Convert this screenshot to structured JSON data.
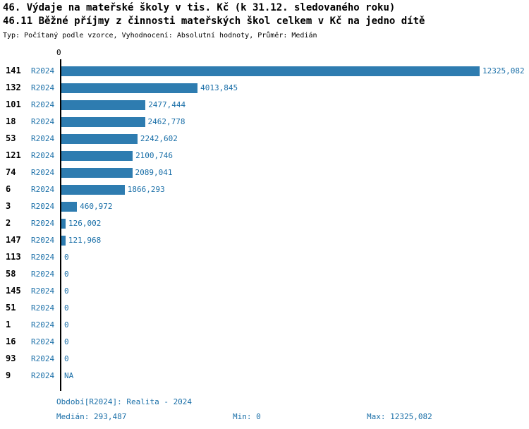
{
  "titles": {
    "line1": "46. Výdaje na mateřské školy v tis. Kč (k 31.12. sledovaného roku)",
    "line2": "46.11 Běžné příjmy z činnosti mateřských škol celkem v Kč na jedno dítě",
    "subtitle": "Typ: Počítaný podle vzorce, Vyhodnocení: Absolutní hodnoty, Průměr: Medián"
  },
  "colors": {
    "bar": "#2E7CB0",
    "text_blue": "#1A6FA8"
  },
  "chart_data": {
    "type": "bar",
    "orientation": "horizontal",
    "axis_zero_label": "0",
    "xlim": [
      0,
      12325.082
    ],
    "grid": false,
    "legend": "none",
    "rows": [
      {
        "id": "141",
        "period": "R2024",
        "value": 12325.082,
        "label": "12325,082"
      },
      {
        "id": "132",
        "period": "R2024",
        "value": 4013.845,
        "label": "4013,845"
      },
      {
        "id": "101",
        "period": "R2024",
        "value": 2477.444,
        "label": "2477,444"
      },
      {
        "id": "18",
        "period": "R2024",
        "value": 2462.778,
        "label": "2462,778"
      },
      {
        "id": "53",
        "period": "R2024",
        "value": 2242.602,
        "label": "2242,602"
      },
      {
        "id": "121",
        "period": "R2024",
        "value": 2100.746,
        "label": "2100,746"
      },
      {
        "id": "74",
        "period": "R2024",
        "value": 2089.041,
        "label": "2089,041"
      },
      {
        "id": "6",
        "period": "R2024",
        "value": 1866.293,
        "label": "1866,293"
      },
      {
        "id": "3",
        "period": "R2024",
        "value": 460.972,
        "label": "460,972"
      },
      {
        "id": "2",
        "period": "R2024",
        "value": 126.002,
        "label": "126,002"
      },
      {
        "id": "147",
        "period": "R2024",
        "value": 121.968,
        "label": "121,968"
      },
      {
        "id": "113",
        "period": "R2024",
        "value": 0,
        "label": "0"
      },
      {
        "id": "58",
        "period": "R2024",
        "value": 0,
        "label": "0"
      },
      {
        "id": "145",
        "period": "R2024",
        "value": 0,
        "label": "0"
      },
      {
        "id": "51",
        "period": "R2024",
        "value": 0,
        "label": "0"
      },
      {
        "id": "1",
        "period": "R2024",
        "value": 0,
        "label": "0"
      },
      {
        "id": "16",
        "period": "R2024",
        "value": 0,
        "label": "0"
      },
      {
        "id": "93",
        "period": "R2024",
        "value": 0,
        "label": "0"
      },
      {
        "id": "9",
        "period": "R2024",
        "value": null,
        "label": "NA"
      }
    ]
  },
  "footer": {
    "period": "Období[R2024]: Realita - 2024",
    "median": "Medián: 293,487",
    "min": "Min: 0",
    "max": "Max: 12325,082"
  }
}
